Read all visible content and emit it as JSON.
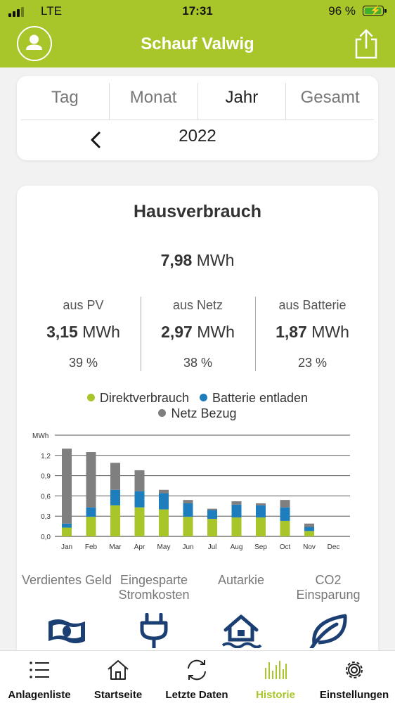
{
  "status_bar": {
    "carrier": "LTE",
    "time": "17:31",
    "battery": "96 %",
    "battery_level": 0.96
  },
  "header": {
    "title": "Schauf Valwig",
    "avatar_icon": "user-icon",
    "share_icon": "share-icon"
  },
  "period_tabs": [
    {
      "label": "Tag",
      "active": false
    },
    {
      "label": "Monat",
      "active": false
    },
    {
      "label": "Jahr",
      "active": true
    },
    {
      "label": "Gesamt",
      "active": false
    }
  ],
  "period_nav": {
    "year": "2022",
    "prev_icon": "chevron-left-icon"
  },
  "consumption": {
    "title": "Hausverbrauch",
    "total_value": "7,98",
    "total_unit": "MWh",
    "sources": [
      {
        "label": "aus PV",
        "value": "3,15",
        "unit": "MWh",
        "percent": "39 %"
      },
      {
        "label": "aus Netz",
        "value": "2,97",
        "unit": "MWh",
        "percent": "38 %"
      },
      {
        "label": "aus Batterie",
        "value": "1,87",
        "unit": "MWh",
        "percent": "23 %"
      }
    ]
  },
  "legend": [
    {
      "label": "Direktverbrauch",
      "color": "#a8c62a"
    },
    {
      "label": "Batterie entladen",
      "color": "#1e7dbd"
    },
    {
      "label": "Netz Bezug",
      "color": "#7f7f7f"
    }
  ],
  "chart_data": {
    "type": "bar",
    "stacked": true,
    "ylabel": "MWh",
    "ylim": [
      0,
      1.5
    ],
    "yticks": [
      "0,0",
      "0,3",
      "0,6",
      "0,9",
      "1,2"
    ],
    "ytick_values": [
      0,
      0.3,
      0.6,
      0.9,
      1.2
    ],
    "grid": true,
    "categories": [
      "Jan",
      "Feb",
      "Mar",
      "Apr",
      "May",
      "Jun",
      "Jul",
      "Aug",
      "Sep",
      "Oct",
      "Nov",
      "Dec"
    ],
    "series": [
      {
        "name": "Direktverbrauch",
        "color": "#a8c62a",
        "values": [
          0.13,
          0.29,
          0.46,
          0.43,
          0.4,
          0.29,
          0.26,
          0.28,
          0.28,
          0.23,
          0.08,
          0
        ]
      },
      {
        "name": "Batterie entladen",
        "color": "#1e7dbd",
        "values": [
          0.06,
          0.14,
          0.23,
          0.24,
          0.24,
          0.2,
          0.13,
          0.19,
          0.18,
          0.2,
          0.06,
          0
        ]
      },
      {
        "name": "Netz Bezug",
        "color": "#7f7f7f",
        "values": [
          1.11,
          0.82,
          0.4,
          0.31,
          0.05,
          0.05,
          0.02,
          0.05,
          0.03,
          0.11,
          0.05,
          0
        ]
      }
    ]
  },
  "kpis": [
    {
      "label": "Verdientes Geld",
      "icon": "money-icon"
    },
    {
      "label": "Eingesparte Stromkosten",
      "icon": "plug-icon"
    },
    {
      "label": "Autarkie",
      "icon": "house-flood-icon"
    },
    {
      "label": "CO2 Einsparung",
      "icon": "leaf-icon"
    }
  ],
  "bottom_nav": [
    {
      "label": "Anlagenliste",
      "icon": "list-icon",
      "active": false
    },
    {
      "label": "Startseite",
      "icon": "home-icon",
      "active": false
    },
    {
      "label": "Letzte Daten",
      "icon": "refresh-icon",
      "active": false
    },
    {
      "label": "Historie",
      "icon": "history-icon",
      "active": true
    },
    {
      "label": "Einstellungen",
      "icon": "settings-icon",
      "active": false
    }
  ],
  "colors": {
    "brand": "#a8c62a",
    "accent_blue": "#1e7dbd",
    "navy": "#1b3f73",
    "grey": "#7f7f7f"
  }
}
